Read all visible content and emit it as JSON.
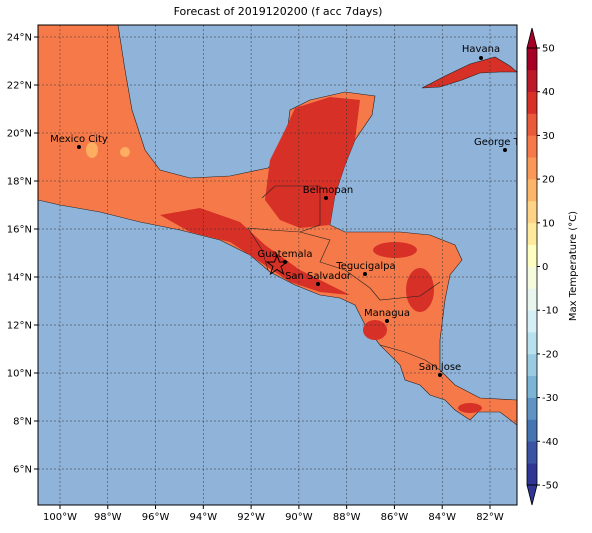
{
  "title": "Forecast of 2019120200 (f acc 7days)",
  "map": {
    "xlim": [
      -100.92,
      -80.87
    ],
    "ylim": [
      4.5,
      24.5
    ],
    "grid": true,
    "xticks": [
      {
        "value": -100,
        "label": "100°W"
      },
      {
        "value": -98,
        "label": "98°W"
      },
      {
        "value": -96,
        "label": "96°W"
      },
      {
        "value": -94,
        "label": "94°W"
      },
      {
        "value": -92,
        "label": "92°W"
      },
      {
        "value": -90,
        "label": "90°W"
      },
      {
        "value": -88,
        "label": "88°W"
      },
      {
        "value": -86,
        "label": "86°W"
      },
      {
        "value": -84,
        "label": "84°W"
      },
      {
        "value": -82,
        "label": "82°W"
      }
    ],
    "yticks": [
      {
        "value": 6,
        "label": "6°N"
      },
      {
        "value": 8,
        "label": "8°N"
      },
      {
        "value": 10,
        "label": "10°N"
      },
      {
        "value": 12,
        "label": "12°N"
      },
      {
        "value": 14,
        "label": "14°N"
      },
      {
        "value": 16,
        "label": "16°N"
      },
      {
        "value": 18,
        "label": "18°N"
      },
      {
        "value": 20,
        "label": "20°N"
      },
      {
        "value": 22,
        "label": "22°N"
      },
      {
        "value": 24,
        "label": "24°N"
      }
    ]
  },
  "cities": [
    "Havana",
    "Mexico City",
    "George Town",
    "Belmopan",
    "Guatemala",
    "San Salvador",
    "Tegucigalpa",
    "Managua",
    "San Jose"
  ],
  "colorbar": {
    "label": "Max Temperature (°C)",
    "lim": [
      -50,
      50
    ],
    "ticks": [
      -50,
      -40,
      -30,
      -20,
      -10,
      0,
      10,
      20,
      30,
      40,
      50
    ],
    "colors": [
      "#313695",
      "#3b53a3",
      "#4574b3",
      "#5e93c3",
      "#7bb4d5",
      "#9acbe1",
      "#b8e0ed",
      "#d6eef5",
      "#e9f6ef",
      "#f7fbdd",
      "#fefec0",
      "#fee99d",
      "#fed385",
      "#fdb567",
      "#fa9857",
      "#f67a49",
      "#e85a3a",
      "#d73027",
      "#bb1a29",
      "#a50026"
    ]
  }
}
